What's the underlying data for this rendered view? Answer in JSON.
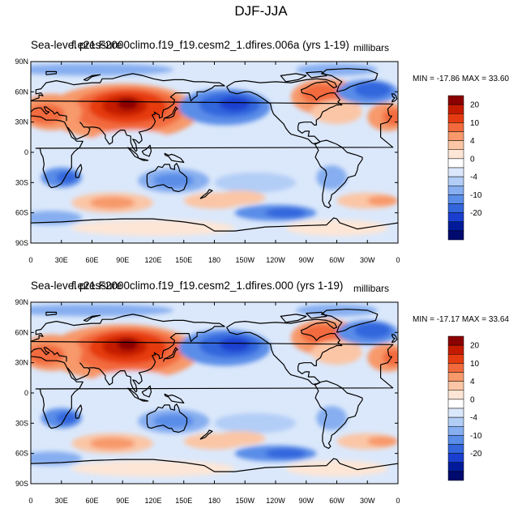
{
  "title": "DJF-JJA",
  "panels": [
    {
      "var_label": "Sea-level pressure",
      "case_label": "f.e21.F2000climo.f19_f19.cesm2_1.dfires.006a (yrs 1-19)",
      "units": "millibars",
      "minmax": "MIN = -17.86  MAX =  33.60"
    },
    {
      "var_label": "Sea-level pressure",
      "case_label": "f.e21.F2000climo.f19_f19.cesm2_1.dfires.000 (yrs 1-19)",
      "units": "millibars",
      "minmax": "MIN = -17.17  MAX =  33.64"
    }
  ],
  "lat_ticks": [
    "90N",
    "60N",
    "30N",
    "0",
    "30S",
    "60S",
    "90S"
  ],
  "lon_ticks": [
    "0",
    "30E",
    "60E",
    "90E",
    "120E",
    "150E",
    "180",
    "150W",
    "120W",
    "90W",
    "60W",
    "30W",
    "0"
  ],
  "colorbar": {
    "labels": [
      "20",
      "10",
      "4",
      "0",
      "-4",
      "-10",
      "-20"
    ],
    "colors": [
      "#8b0000",
      "#c41a00",
      "#e63b10",
      "#f26a3c",
      "#f7996a",
      "#fbc6a6",
      "#fde6d6",
      "#ffffff",
      "#dbe8fb",
      "#b2cdf6",
      "#86aef0",
      "#5a8de8",
      "#3366dd",
      "#1a3fd0",
      "#001a99",
      "#000a6e"
    ]
  }
}
